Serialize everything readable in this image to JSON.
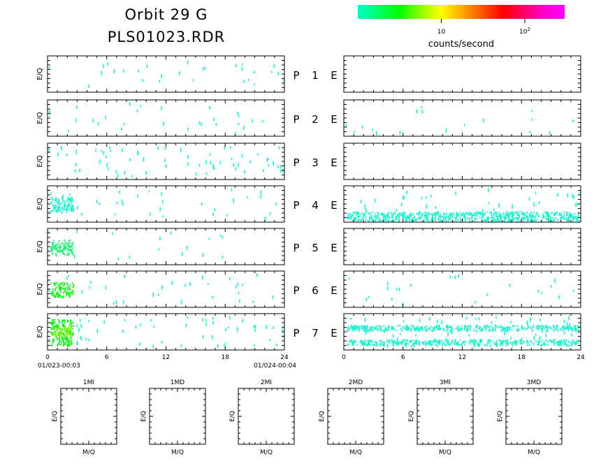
{
  "title": {
    "line1": "Orbit 29 G",
    "line2": "PLS01023.RDR"
  },
  "colorbar": {
    "label": "counts/second",
    "ticks": [
      {
        "text": "10",
        "value": 10
      },
      {
        "text": "10",
        "sup": "2",
        "value": 100
      }
    ],
    "range": [
      1,
      300
    ],
    "stops": [
      "#00ffcc",
      "#00ff66",
      "#00ff00",
      "#88ff00",
      "#ffff00",
      "#ffaa00",
      "#ff5500",
      "#ff0000",
      "#ff0066",
      "#ff00cc",
      "#ff00ff"
    ]
  },
  "panel_ylabel": "E/Q",
  "rows": [
    {
      "p_label": "P",
      "num": "1",
      "e_label": "E"
    },
    {
      "p_label": "P",
      "num": "2",
      "e_label": "E"
    },
    {
      "p_label": "P",
      "num": "3",
      "e_label": "E"
    },
    {
      "p_label": "P",
      "num": "4",
      "e_label": "E"
    },
    {
      "p_label": "P",
      "num": "5",
      "e_label": "E"
    },
    {
      "p_label": "P",
      "num": "6",
      "e_label": "E"
    },
    {
      "p_label": "P",
      "num": "7",
      "e_label": "E"
    }
  ],
  "time_axis": {
    "ticks": [
      "0",
      "6",
      "12",
      "18",
      "24"
    ],
    "start_label": "01/023-00:03",
    "end_label": "01/024-00:04",
    "xlim": [
      0,
      24
    ]
  },
  "small_panels": [
    {
      "title": "1MI",
      "xlabel": "M/Q",
      "ylabel": "E/Q"
    },
    {
      "title": "1MD",
      "xlabel": "M/Q",
      "ylabel": "E/Q"
    },
    {
      "title": "2MI",
      "xlabel": "M/Q",
      "ylabel": "E/Q"
    },
    {
      "title": "2MD",
      "xlabel": "M/Q",
      "ylabel": "E/Q"
    },
    {
      "title": "3MI",
      "xlabel": "M/Q",
      "ylabel": "E/Q"
    },
    {
      "title": "3MD",
      "xlabel": "M/Q",
      "ylabel": "E/Q"
    }
  ],
  "chart_data": {
    "type": "heatmap",
    "xlim": [
      0,
      24
    ],
    "colorscale": "log",
    "panels_left": [
      {
        "name": "P1",
        "density": 0.25,
        "bands": []
      },
      {
        "name": "P2",
        "density": 0.25,
        "bands": []
      },
      {
        "name": "P3",
        "density": 0.6,
        "bands": []
      },
      {
        "name": "P4",
        "density": 0.3,
        "bands": [
          {
            "x": [
              0,
              2.6
            ],
            "y": [
              0.3,
              0.7
            ],
            "level": 1
          }
        ]
      },
      {
        "name": "P5",
        "density": 0.15,
        "bands": [
          {
            "x": [
              0,
              2.6
            ],
            "y": [
              0.3,
              0.7
            ],
            "level": 1.4
          }
        ]
      },
      {
        "name": "P6",
        "density": 0.3,
        "bands": [
          {
            "x": [
              0,
              2.6
            ],
            "y": [
              0.3,
              0.7
            ],
            "level": 2.5
          }
        ]
      },
      {
        "name": "P7",
        "density": 0.5,
        "bands": [
          {
            "x": [
              0,
              2.6
            ],
            "y": [
              0.15,
              0.85
            ],
            "level": 3
          },
          {
            "x": [
              0.2,
              2.4
            ],
            "y": [
              0.35,
              0.6
            ],
            "level": 8
          }
        ]
      }
    ],
    "panels_right": [
      {
        "name": "E1",
        "density": 0,
        "bands": []
      },
      {
        "name": "E2",
        "density": 0.15,
        "bands": []
      },
      {
        "name": "E3",
        "density": 0,
        "bands": []
      },
      {
        "name": "E4",
        "density": 0.45,
        "bands": [
          {
            "x": [
              0,
              24
            ],
            "y": [
              0.7,
              0.95
            ],
            "level": 1
          }
        ]
      },
      {
        "name": "E5",
        "density": 0,
        "bands": []
      },
      {
        "name": "E6",
        "density": 0.2,
        "bands": []
      },
      {
        "name": "E7",
        "density": 0.6,
        "bands": [
          {
            "x": [
              0,
              24
            ],
            "y": [
              0.3,
              0.45
            ],
            "level": 1
          },
          {
            "x": [
              0,
              24
            ],
            "y": [
              0.7,
              0.85
            ],
            "level": 1
          }
        ]
      }
    ]
  }
}
